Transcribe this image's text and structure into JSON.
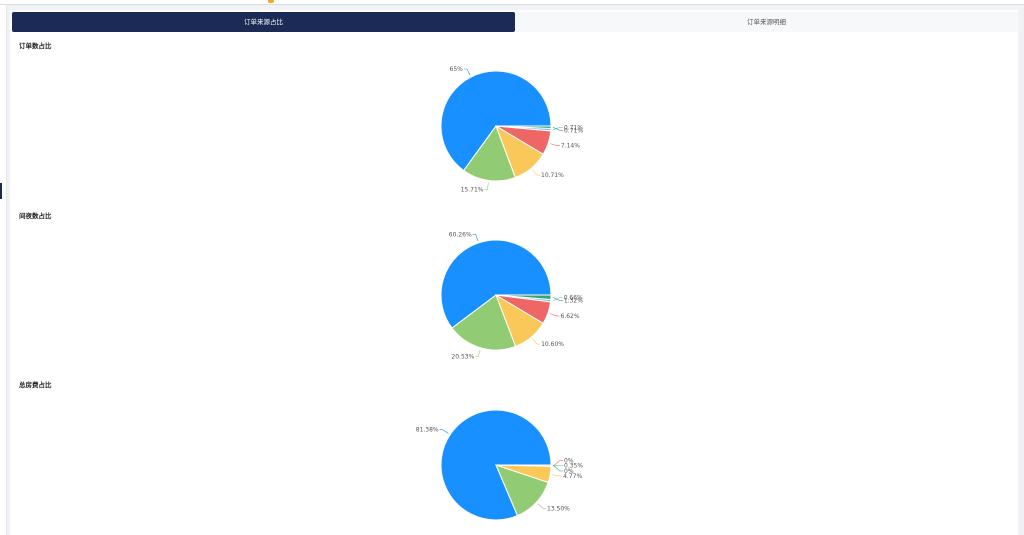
{
  "tabs": [
    {
      "label": "订单来源占比",
      "active": true
    },
    {
      "label": "订单来源明细",
      "active": false
    }
  ],
  "colors": {
    "accent": "#1b2b55",
    "series": [
      "#1890ff",
      "#91cb74",
      "#fac858",
      "#ee6666",
      "#73c0de",
      "#3ba272"
    ]
  },
  "chart_data": [
    {
      "type": "pie",
      "title": "订单数占比",
      "values": [
        65,
        15.71,
        10.71,
        7.14,
        0.71,
        0.71
      ],
      "labels": [
        "65%",
        "15.71%",
        "10.71%",
        "7.14%",
        "0.71%",
        "0.71%"
      ]
    },
    {
      "type": "pie",
      "title": "间夜数占比",
      "values": [
        60.26,
        20.53,
        10.6,
        6.62,
        0.66,
        1.32
      ],
      "labels": [
        "60.26%",
        "20.53%",
        "10.60%",
        "6.62%",
        "0.66%",
        "1.32%"
      ]
    },
    {
      "type": "pie",
      "title": "总房费占比",
      "values": [
        81.38,
        13.5,
        4.77,
        0,
        0.35,
        0
      ],
      "labels": [
        "81.38%",
        "13.50%",
        "4.77%",
        "0%",
        "0.35%",
        "0%"
      ]
    }
  ]
}
